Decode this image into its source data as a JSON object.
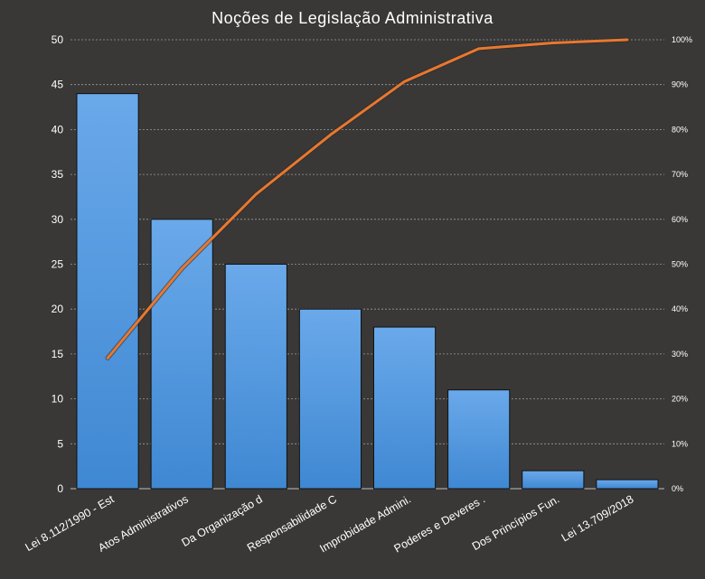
{
  "chart_data": {
    "type": "bar",
    "title": "Noções de Legislação  Administrativa",
    "categories": [
      "Lei 8.112/1990 - Est",
      "Atos Administrativos",
      "Da Organização d",
      "Responsabilidade C",
      "Improbidade  Admini.",
      "Poderes e Deveres  .",
      "Dos Princípios Fun.",
      "Lei 13.709/2018"
    ],
    "values": [
      44,
      30,
      25,
      20,
      18,
      11,
      2,
      1
    ],
    "cumulative_percent": [
      29.1,
      49.0,
      65.6,
      78.8,
      90.7,
      98.0,
      99.3,
      100.0
    ],
    "ylim": [
      0,
      50
    ],
    "yticks": [
      "0",
      "5",
      "10",
      "15",
      "20",
      "25",
      "30",
      "35",
      "40",
      "45",
      "50"
    ],
    "y2lim": [
      0,
      100
    ],
    "y2ticks": [
      "0%",
      "10%",
      "20%",
      "30%",
      "40%",
      "50%",
      "60%",
      "70%",
      "80%",
      "90%",
      "100%"
    ],
    "grid": true,
    "colors": {
      "background": "#3a3836",
      "bar_top": "#6aa9ea",
      "bar_bottom": "#3f88d2",
      "line": "#e8782f",
      "grid": "#9a9a9a",
      "text": "#ffffff"
    }
  }
}
